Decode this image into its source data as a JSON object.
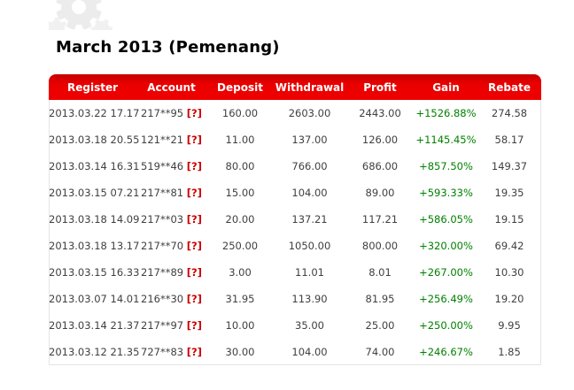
{
  "page": {
    "title": "March 2013 (Pemenang)"
  },
  "icons": {
    "watermark": "gear-icon"
  },
  "colors": {
    "header_red": "#ee0000",
    "gain_green": "#008000",
    "help_red": "#cc0000",
    "row_text": "#404040",
    "border_gray": "#e4e4e4",
    "watermark_gray": "#ececec"
  },
  "table": {
    "columns": [
      "Register",
      "Account",
      "Deposit",
      "Withdrawal",
      "Profit",
      "Gain",
      "Rebate"
    ],
    "help_label": "[?]",
    "rows": [
      {
        "register": "2013.03.22 17.17",
        "account": "217**95",
        "deposit": "160.00",
        "withdrawal": "2603.00",
        "profit": "2443.00",
        "gain": "+1526.88%",
        "rebate": "274.58"
      },
      {
        "register": "2013.03.18 20.55",
        "account": "121**21",
        "deposit": "11.00",
        "withdrawal": "137.00",
        "profit": "126.00",
        "gain": "+1145.45%",
        "rebate": "58.17"
      },
      {
        "register": "2013.03.14 16.31",
        "account": "519**46",
        "deposit": "80.00",
        "withdrawal": "766.00",
        "profit": "686.00",
        "gain": "+857.50%",
        "rebate": "149.37"
      },
      {
        "register": "2013.03.15 07.21",
        "account": "217**81",
        "deposit": "15.00",
        "withdrawal": "104.00",
        "profit": "89.00",
        "gain": "+593.33%",
        "rebate": "19.35"
      },
      {
        "register": "2013.03.18 14.09",
        "account": "217**03",
        "deposit": "20.00",
        "withdrawal": "137.21",
        "profit": "117.21",
        "gain": "+586.05%",
        "rebate": "19.15"
      },
      {
        "register": "2013.03.18 13.17",
        "account": "217**70",
        "deposit": "250.00",
        "withdrawal": "1050.00",
        "profit": "800.00",
        "gain": "+320.00%",
        "rebate": "69.42"
      },
      {
        "register": "2013.03.15 16.33",
        "account": "217**89",
        "deposit": "3.00",
        "withdrawal": "11.01",
        "profit": "8.01",
        "gain": "+267.00%",
        "rebate": "10.30"
      },
      {
        "register": "2013.03.07 14.01",
        "account": "216**30",
        "deposit": "31.95",
        "withdrawal": "113.90",
        "profit": "81.95",
        "gain": "+256.49%",
        "rebate": "19.20"
      },
      {
        "register": "2013.03.14 21.37",
        "account": "217**97",
        "deposit": "10.00",
        "withdrawal": "35.00",
        "profit": "25.00",
        "gain": "+250.00%",
        "rebate": "9.95"
      },
      {
        "register": "2013.03.12 21.35",
        "account": "727**83",
        "deposit": "30.00",
        "withdrawal": "104.00",
        "profit": "74.00",
        "gain": "+246.67%",
        "rebate": "1.85"
      }
    ]
  }
}
